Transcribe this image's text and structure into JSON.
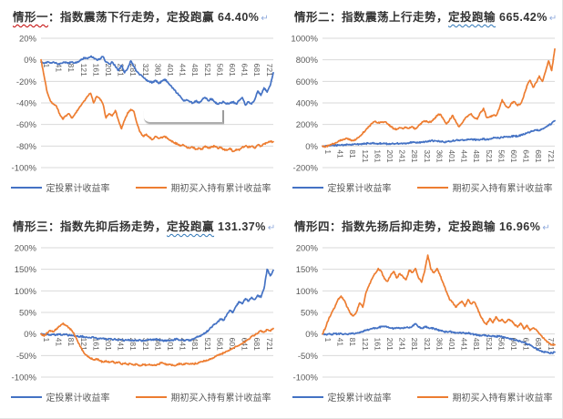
{
  "page": {
    "background": "#ffffff"
  },
  "colors": {
    "dca": "#4472C4",
    "lumpsum": "#ED7D31",
    "grid": "#D9D9D9",
    "axis_text": "#595959",
    "title_text": "#333333",
    "red_wavy": "#C00000",
    "blue_wavy": "#2E75B6",
    "return_mark": "#8FAADC"
  },
  "return_mark": "↵",
  "chart_data": [
    {
      "type": "line",
      "title": "情形一：指数震荡下行走势，定投跑赢 64.40%",
      "title_segments": [
        {
          "text": "情形一",
          "underline": "red-wavy"
        },
        {
          "text": "：指数震荡下行走势，定投跑赢 64.40%",
          "underline": "none"
        }
      ],
      "x_ticks": [
        1,
        41,
        81,
        121,
        161,
        201,
        241,
        281,
        321,
        361,
        401,
        441,
        481,
        521,
        561,
        601,
        641,
        681,
        721
      ],
      "x_max": 751,
      "x_sample_step": 10,
      "ylim": [
        -100,
        20
      ],
      "y_ticks": [
        20,
        0,
        -20,
        -40,
        -60,
        -80,
        -100
      ],
      "grid": true,
      "legend_position": "bottom",
      "series": [
        {
          "name": "定投累计收益率",
          "color_key": "dca",
          "values": [
            -2,
            -3,
            -2,
            -3,
            -2,
            -3,
            -4,
            -3,
            -2,
            -3,
            -2,
            -3,
            -2,
            0,
            2,
            1,
            3,
            2,
            0,
            1,
            3,
            -2,
            -4,
            -2,
            -6,
            -10,
            -5,
            -12,
            -8,
            -1,
            -6,
            -11,
            -14,
            -16,
            -19,
            -20,
            -21,
            -19,
            -22,
            -20,
            -18,
            -21,
            -24,
            -28,
            -31,
            -34,
            -38,
            -37,
            -39,
            -40,
            -38,
            -40,
            -37,
            -35,
            -38,
            -36,
            -39,
            -41,
            -40,
            -39,
            -41,
            -40,
            -39,
            -41,
            -38,
            -35,
            -42,
            -39,
            -41,
            -37,
            -29,
            -33,
            -26,
            -30,
            -24,
            -12
          ]
        },
        {
          "name": "期初买入持有累计收益率",
          "color_key": "lumpsum",
          "values": [
            0,
            -15,
            -30,
            -38,
            -41,
            -43,
            -50,
            -55,
            -52,
            -50,
            -54,
            -50,
            -46,
            -42,
            -38,
            -34,
            -31,
            -40,
            -34,
            -36,
            -41,
            -54,
            -50,
            -52,
            -47,
            -56,
            -64,
            -56,
            -49,
            -46,
            -48,
            -59,
            -67,
            -71,
            -69,
            -72,
            -74,
            -71,
            -73,
            -72,
            -71,
            -73,
            -75,
            -77,
            -78,
            -80,
            -79,
            -81,
            -82,
            -81,
            -83,
            -82,
            -83,
            -80,
            -82,
            -81,
            -80,
            -82,
            -81,
            -83,
            -84,
            -82,
            -85,
            -83,
            -84,
            -81,
            -80,
            -81,
            -80,
            -82,
            -79,
            -80,
            -78,
            -77,
            -76,
            -76
          ]
        }
      ]
    },
    {
      "type": "line",
      "title": "情形二：指数震荡上行走势，定投跑输 665.42%",
      "title_segments": [
        {
          "text": "情形二：指数震荡上行走势，",
          "underline": "none"
        },
        {
          "text": "定投跑输",
          "underline": "blue-wavy"
        },
        {
          "text": " 665.42%",
          "underline": "none"
        }
      ],
      "x_ticks": [
        1,
        41,
        81,
        121,
        161,
        201,
        241,
        281,
        321,
        361,
        401,
        441,
        481,
        521,
        561,
        601,
        641,
        681,
        721
      ],
      "x_max": 751,
      "x_sample_step": 10,
      "ylim": [
        -200,
        1000
      ],
      "y_ticks": [
        1000,
        800,
        600,
        400,
        200,
        0,
        -200
      ],
      "grid": true,
      "legend_position": "bottom",
      "series": [
        {
          "name": "定投累计收益率",
          "color_key": "dca",
          "values": [
            0,
            2,
            4,
            5,
            6,
            8,
            10,
            12,
            14,
            13,
            15,
            17,
            19,
            21,
            23,
            24,
            25,
            24,
            23,
            24,
            22,
            20,
            21,
            22,
            24,
            23,
            25,
            27,
            30,
            32,
            35,
            34,
            37,
            40,
            45,
            50,
            48,
            46,
            44,
            40,
            38,
            42,
            48,
            52,
            55,
            58,
            54,
            60,
            63,
            60,
            58,
            62,
            65,
            60,
            66,
            72,
            78,
            74,
            80,
            85,
            82,
            88,
            95,
            90,
            100,
            110,
            120,
            130,
            140,
            150,
            145,
            160,
            175,
            190,
            210,
            235
          ]
        },
        {
          "name": "期初买入持有累计收益率",
          "color_key": "lumpsum",
          "values": [
            0,
            -8,
            5,
            15,
            25,
            40,
            55,
            65,
            70,
            55,
            50,
            65,
            90,
            120,
            150,
            180,
            210,
            230,
            215,
            220,
            225,
            205,
            185,
            160,
            155,
            170,
            160,
            175,
            165,
            180,
            160,
            190,
            215,
            230,
            225,
            220,
            250,
            285,
            295,
            250,
            205,
            240,
            285,
            230,
            180,
            210,
            255,
            280,
            300,
            260,
            250,
            310,
            350,
            265,
            270,
            285,
            280,
            340,
            430,
            380,
            355,
            395,
            410,
            375,
            395,
            465,
            560,
            610,
            545,
            590,
            650,
            600,
            690,
            790,
            700,
            900
          ]
        }
      ]
    },
    {
      "type": "line",
      "title": "情形三：指数先抑后扬走势，定投跑赢 131.37%",
      "title_segments": [
        {
          "text": "情形三：指数先抑后扬走势，",
          "underline": "none"
        },
        {
          "text": "定投跑赢",
          "underline": "blue-wavy"
        },
        {
          "text": " 131.37%",
          "underline": "none"
        }
      ],
      "x_ticks": [
        1,
        41,
        81,
        121,
        161,
        201,
        241,
        281,
        321,
        361,
        401,
        441,
        481,
        521,
        561,
        601,
        641,
        681,
        721
      ],
      "x_max": 751,
      "x_sample_step": 10,
      "ylim": [
        -100,
        200
      ],
      "y_ticks": [
        200,
        150,
        100,
        50,
        0,
        -50,
        -100
      ],
      "grid": true,
      "legend_position": "bottom",
      "series": [
        {
          "name": "定投累计收益率",
          "color_key": "dca",
          "values": [
            0,
            -2,
            -1,
            -2,
            -1,
            -2,
            -1,
            -2,
            -1,
            -3,
            -4,
            -5,
            -6,
            -5,
            -7,
            -8,
            -9,
            -8,
            -10,
            -11,
            -10,
            -12,
            -11,
            -13,
            -12,
            -14,
            -13,
            -15,
            -14,
            -15,
            -16,
            -15,
            -14,
            -16,
            -15,
            -13,
            -14,
            -12,
            -14,
            -15,
            -16,
            -14,
            -15,
            -13,
            -12,
            -14,
            -15,
            -13,
            -15,
            -12,
            -8,
            -5,
            -2,
            3,
            8,
            15,
            22,
            28,
            35,
            32,
            45,
            55,
            50,
            65,
            75,
            70,
            82,
            76,
            85,
            80,
            90,
            85,
            105,
            150,
            135,
            148
          ]
        },
        {
          "name": "期初买入持有累计收益率",
          "color_key": "lumpsum",
          "values": [
            0,
            -5,
            3,
            8,
            5,
            12,
            18,
            24,
            20,
            15,
            8,
            -5,
            -20,
            -33,
            -45,
            -52,
            -56,
            -60,
            -58,
            -62,
            -65,
            -62,
            -66,
            -63,
            -68,
            -65,
            -70,
            -68,
            -71,
            -69,
            -72,
            -70,
            -73,
            -71,
            -72,
            -70,
            -73,
            -72,
            -70,
            -66,
            -70,
            -72,
            -71,
            -73,
            -70,
            -69,
            -71,
            -68,
            -70,
            -68,
            -69,
            -66,
            -64,
            -62,
            -60,
            -57,
            -54,
            -50,
            -47,
            -44,
            -40,
            -36,
            -33,
            -29,
            -26,
            -22,
            -18,
            -12,
            -6,
            -2,
            2,
            8,
            4,
            10,
            7,
            13
          ]
        }
      ]
    },
    {
      "type": "line",
      "title": "情形四：指数先扬后抑走势，定投跑输 16.96%",
      "title_segments": [
        {
          "text": "情形四：指数先扬后抑走势，定投跑输 16.96%",
          "underline": "none"
        }
      ],
      "x_ticks": [
        1,
        41,
        81,
        121,
        161,
        201,
        241,
        281,
        321,
        361,
        401,
        441,
        481,
        521,
        561,
        601,
        641,
        681,
        721
      ],
      "x_max": 751,
      "x_sample_step": 10,
      "ylim": [
        -100,
        200
      ],
      "y_ticks": [
        200,
        150,
        100,
        50,
        0,
        -50,
        -100
      ],
      "grid": true,
      "legend_position": "bottom",
      "series": [
        {
          "name": "定投累计收益率",
          "color_key": "dca",
          "values": [
            0,
            -1,
            0,
            -1,
            1,
            0,
            1,
            0,
            -1,
            0,
            1,
            2,
            4,
            6,
            8,
            10,
            12,
            14,
            15,
            17,
            18,
            16,
            14,
            13,
            15,
            14,
            13,
            15,
            14,
            18,
            24,
            16,
            13,
            17,
            15,
            14,
            12,
            10,
            8,
            6,
            5,
            6,
            4,
            3,
            2,
            3,
            1,
            2,
            0,
            -1,
            -2,
            -3,
            -2,
            -4,
            -5,
            -4,
            -6,
            -5,
            -7,
            -8,
            -10,
            -12,
            -14,
            -15,
            -17,
            -20,
            -23,
            -26,
            -30,
            -34,
            -38,
            -40,
            -42,
            -43,
            -44,
            -42
          ]
        },
        {
          "name": "期初买入持有累计收益率",
          "color_key": "lumpsum",
          "values": [
            0,
            15,
            35,
            50,
            62,
            80,
            88,
            78,
            62,
            48,
            42,
            52,
            72,
            62,
            95,
            112,
            128,
            140,
            152,
            145,
            128,
            122,
            136,
            145,
            130,
            140,
            133,
            126,
            148,
            143,
            152,
            130,
            120,
            146,
            183,
            150,
            142,
            152,
            135,
            118,
            98,
            80,
            74,
            62,
            70,
            76,
            64,
            80,
            70,
            74,
            60,
            42,
            30,
            22,
            36,
            26,
            40,
            30,
            34,
            26,
            34,
            30,
            22,
            16,
            25,
            12,
            20,
            8,
            14,
            10,
            0,
            -8,
            -14,
            -20,
            -25,
            -25
          ]
        }
      ]
    }
  ]
}
